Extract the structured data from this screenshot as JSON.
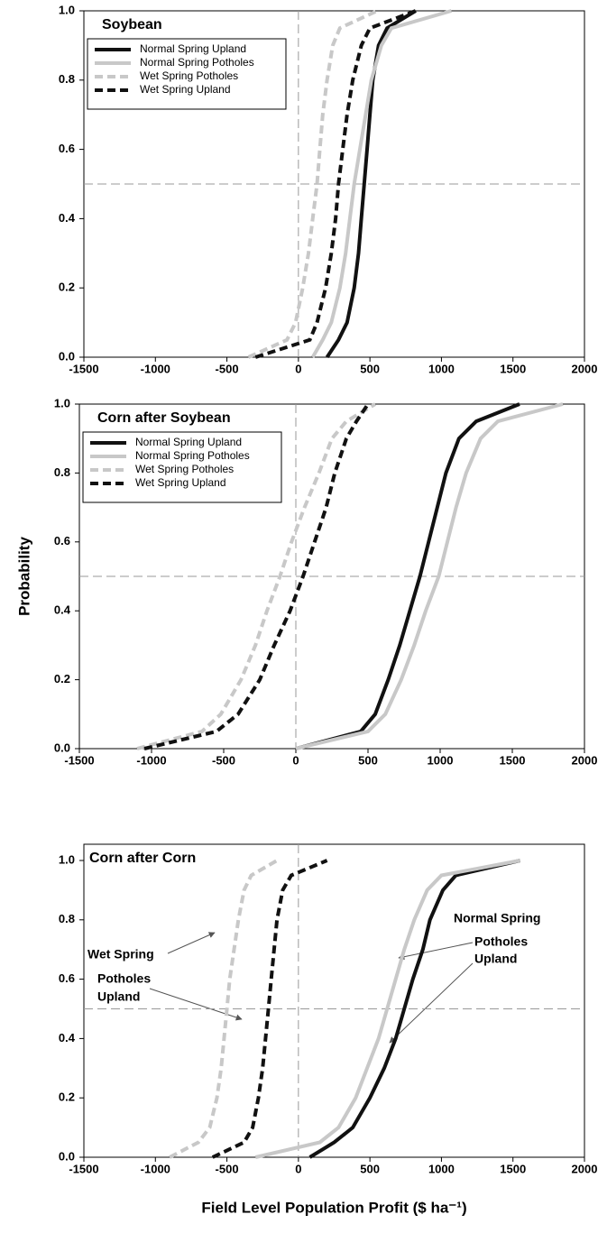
{
  "chart_data": [
    {
      "type": "line",
      "title": "Soybean",
      "xlim": [
        -1500,
        2000
      ],
      "xticks": [
        -1500,
        -1000,
        -500,
        0,
        500,
        1000,
        1500,
        2000
      ],
      "ylim": [
        0,
        1
      ],
      "yticks": [
        {
          "value": 0,
          "label": "0.0"
        },
        {
          "value": 0.2,
          "label": "0.2"
        },
        {
          "value": 0.4,
          "label": "0.4"
        },
        {
          "value": 0.6,
          "label": "0.6"
        },
        {
          "value": 0.8,
          "label": "0.8"
        },
        {
          "value": 1,
          "label": "1.0"
        }
      ],
      "vline": 0,
      "hline": 0.5,
      "legend": "upper left",
      "series": [
        {
          "name": "Normal Spring Upland",
          "color": "#111111",
          "dash": false,
          "x": [
            200,
            280,
            340,
            390,
            420,
            440,
            460,
            480,
            500,
            520,
            560,
            620,
            820
          ],
          "values": [
            0,
            0.05,
            0.1,
            0.2,
            0.3,
            0.4,
            0.5,
            0.6,
            0.7,
            0.8,
            0.9,
            0.95,
            1
          ]
        },
        {
          "name": "Normal Spring Potholes",
          "color": "#c8c8c8",
          "dash": false,
          "x": [
            100,
            170,
            230,
            290,
            330,
            360,
            390,
            430,
            470,
            510,
            580,
            650,
            1070
          ],
          "values": [
            0,
            0.05,
            0.1,
            0.2,
            0.3,
            0.4,
            0.5,
            0.6,
            0.7,
            0.8,
            0.9,
            0.95,
            1
          ]
        },
        {
          "name": "Wet Spring Potholes",
          "color": "#c8c8c8",
          "dash": true,
          "x": [
            -350,
            -80,
            -20,
            30,
            70,
            100,
            130,
            150,
            170,
            200,
            240,
            290,
            550
          ],
          "values": [
            0,
            0.05,
            0.1,
            0.2,
            0.3,
            0.4,
            0.5,
            0.6,
            0.7,
            0.8,
            0.9,
            0.95,
            1
          ]
        },
        {
          "name": "Wet Spring Upland",
          "color": "#111111",
          "dash": true,
          "x": [
            -300,
            80,
            130,
            190,
            230,
            260,
            280,
            310,
            340,
            380,
            440,
            500,
            820
          ],
          "values": [
            0,
            0.05,
            0.1,
            0.2,
            0.3,
            0.4,
            0.5,
            0.6,
            0.7,
            0.8,
            0.9,
            0.95,
            1
          ]
        }
      ]
    },
    {
      "type": "line",
      "title": "Corn after Soybean",
      "ylabel": "Probability",
      "xlim": [
        -1500,
        2000
      ],
      "xticks": [
        -1500,
        -1000,
        -500,
        0,
        500,
        1000,
        1500,
        2000
      ],
      "ylim": [
        0,
        1
      ],
      "yticks": [
        {
          "value": 0,
          "label": "0.0"
        },
        {
          "value": 0.2,
          "label": "0.2"
        },
        {
          "value": 0.4,
          "label": "0.4"
        },
        {
          "value": 0.6,
          "label": "0.6"
        },
        {
          "value": 0.8,
          "label": "0.8"
        },
        {
          "value": 1,
          "label": "1.0"
        }
      ],
      "vline": 0,
      "hline": 0.5,
      "legend": "upper left",
      "series": [
        {
          "name": "Normal Spring Upland",
          "color": "#111111",
          "dash": false,
          "x": [
            0,
            450,
            550,
            640,
            720,
            790,
            860,
            920,
            980,
            1040,
            1130,
            1250,
            1550
          ],
          "values": [
            0,
            0.05,
            0.1,
            0.2,
            0.3,
            0.4,
            0.5,
            0.6,
            0.7,
            0.8,
            0.9,
            0.95,
            1
          ]
        },
        {
          "name": "Normal Spring Potholes",
          "color": "#c8c8c8",
          "dash": false,
          "x": [
            0,
            500,
            620,
            730,
            820,
            900,
            990,
            1050,
            1110,
            1180,
            1280,
            1400,
            1850
          ],
          "values": [
            0,
            0.05,
            0.1,
            0.2,
            0.3,
            0.4,
            0.5,
            0.6,
            0.7,
            0.8,
            0.9,
            0.95,
            1
          ]
        },
        {
          "name": "Wet Spring Potholes",
          "color": "#c8c8c8",
          "dash": true,
          "x": [
            -1100,
            -650,
            -520,
            -380,
            -280,
            -200,
            -110,
            -30,
            60,
            160,
            250,
            350,
            550
          ],
          "values": [
            0,
            0.05,
            0.1,
            0.2,
            0.3,
            0.4,
            0.5,
            0.6,
            0.7,
            0.8,
            0.9,
            0.95,
            1
          ]
        },
        {
          "name": "Wet Spring Upland",
          "color": "#111111",
          "dash": true,
          "x": [
            -1050,
            -550,
            -400,
            -250,
            -150,
            -40,
            50,
            130,
            210,
            270,
            350,
            420,
            500
          ],
          "values": [
            0,
            0.05,
            0.1,
            0.2,
            0.3,
            0.4,
            0.5,
            0.6,
            0.7,
            0.8,
            0.9,
            0.95,
            1
          ]
        }
      ]
    },
    {
      "type": "line",
      "title": "Corn after Corn",
      "xlabel": "Field Level Population Profit ($ ha⁻¹)",
      "xlim": [
        -1500,
        2000
      ],
      "xticks": [
        -1500,
        -1000,
        -500,
        0,
        500,
        1000,
        1500,
        2000
      ],
      "ylim": [
        0,
        1
      ],
      "yticks": [
        {
          "value": 0,
          "label": "0.0"
        },
        {
          "value": 0.2,
          "label": "0.2"
        },
        {
          "value": 0.4,
          "label": "0.4"
        },
        {
          "value": 0.6,
          "label": "0.6"
        },
        {
          "value": 0.8,
          "label": "0.8"
        },
        {
          "value": 1,
          "label": "1.0"
        }
      ],
      "vline": 0,
      "hline": 0.5,
      "annotations": [
        "Wet Spring",
        "Potholes",
        "Upland",
        "Normal Spring",
        "Potholes",
        "Upland"
      ],
      "series": [
        {
          "color": "#111111",
          "dash": false,
          "x": [
            80,
            250,
            380,
            500,
            600,
            680,
            740,
            800,
            870,
            920,
            1010,
            1100,
            1550
          ],
          "values": [
            0,
            0.05,
            0.1,
            0.2,
            0.3,
            0.4,
            0.5,
            0.6,
            0.7,
            0.8,
            0.9,
            0.95,
            1
          ]
        },
        {
          "color": "#c8c8c8",
          "dash": false,
          "x": [
            -300,
            150,
            280,
            400,
            480,
            560,
            620,
            680,
            740,
            810,
            900,
            1000,
            1550
          ],
          "values": [
            0,
            0.05,
            0.1,
            0.2,
            0.3,
            0.4,
            0.5,
            0.6,
            0.7,
            0.8,
            0.9,
            0.95,
            1
          ]
        },
        {
          "color": "#c8c8c8",
          "dash": true,
          "x": [
            -900,
            -700,
            -620,
            -570,
            -540,
            -520,
            -500,
            -480,
            -450,
            -420,
            -380,
            -330,
            -150
          ],
          "values": [
            0,
            0.05,
            0.1,
            0.2,
            0.3,
            0.4,
            0.5,
            0.6,
            0.7,
            0.8,
            0.9,
            0.95,
            1
          ]
        },
        {
          "color": "#111111",
          "dash": true,
          "x": [
            -600,
            -380,
            -320,
            -280,
            -250,
            -230,
            -210,
            -190,
            -170,
            -150,
            -110,
            -50,
            200
          ],
          "values": [
            0,
            0.05,
            0.1,
            0.2,
            0.3,
            0.4,
            0.5,
            0.6,
            0.7,
            0.8,
            0.9,
            0.95,
            1
          ]
        }
      ]
    }
  ]
}
